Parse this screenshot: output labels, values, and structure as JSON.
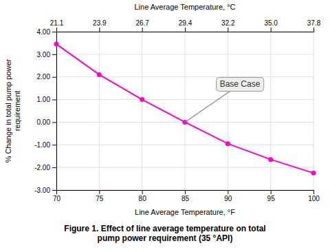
{
  "chart_data": {
    "type": "line",
    "title": "Figure 1. Effect of line average temperature on total\npump power requirement (35 °API)",
    "x_label": "Line Average Temperature, °F",
    "x2_label": "Line Average Temperature, °C",
    "y_label": "% Change in total pump power\nrequirement",
    "x": [
      70,
      75,
      80,
      85,
      90,
      95,
      100
    ],
    "values": [
      3.45,
      2.1,
      1.0,
      0.0,
      -0.95,
      -1.65,
      -2.25
    ],
    "color": "#FF00CC",
    "marker": "circle",
    "xlim": [
      70,
      100
    ],
    "xticks": [
      70,
      75,
      80,
      85,
      90,
      95,
      100
    ],
    "x2lim": [
      70,
      100
    ],
    "x2ticks": [
      {
        "value": 70,
        "label": "21.1"
      },
      {
        "value": 75,
        "label": "23.9"
      },
      {
        "value": 80,
        "label": "26.7"
      },
      {
        "value": 85,
        "label": "29.4"
      },
      {
        "value": 90,
        "label": "32.2"
      },
      {
        "value": 95,
        "label": "35.0"
      },
      {
        "value": 100,
        "label": "37.8"
      }
    ],
    "ylim": [
      -3.0,
      4.0
    ],
    "yticks": [
      {
        "value": -3,
        "label": "-3.00"
      },
      {
        "value": -2,
        "label": "-2.00"
      },
      {
        "value": -1,
        "label": "-1.00"
      },
      {
        "value": 0,
        "label": "0.00"
      },
      {
        "value": 1,
        "label": "1.00"
      },
      {
        "value": 2,
        "label": "2.00"
      },
      {
        "value": 3,
        "label": "3.00"
      },
      {
        "value": 4,
        "label": "4.00"
      }
    ],
    "grid": true,
    "annotations": [
      {
        "text": "Base Case",
        "x": 85,
        "y": 0.0
      }
    ]
  }
}
